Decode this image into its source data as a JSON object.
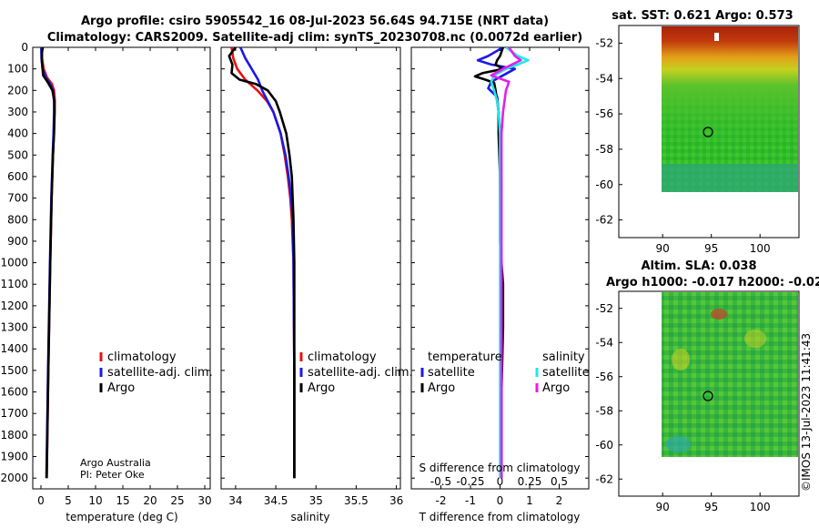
{
  "figure": {
    "title_line1": "Argo profile: csiro 5905542_16 08-Jul-2023 56.64S 94.715E (NRT data)",
    "title_line2": "Climatology: CARS2009. Satellite-adj clim: synTS_20230708.nc (0.0072d earlier)",
    "credit_line1": "Argo Australia",
    "credit_line2": "PI: Peter Oke",
    "timestamp": "©IMOS 13-Jul-2023 11:41:43"
  },
  "colors": {
    "climatology": "#e8110f",
    "satellite_adj": "#1a1ae6",
    "argo": "#000000",
    "sat_salinity": "#1ee8ee",
    "argo_salinity": "#e61ee6"
  },
  "legend_profiles": [
    {
      "label": "climatology",
      "series": "climatology"
    },
    {
      "label": "satellite-adj. clim.",
      "series": "satellite_adj"
    },
    {
      "label": "Argo",
      "series": "argo"
    }
  ],
  "legend_profiles_sal": [
    {
      "label": "climatology",
      "series": "climatology"
    },
    {
      "label": "satellite-adj. clim.",
      "series": "satellite_adj"
    },
    {
      "label": "Argo",
      "series": "argo"
    }
  ],
  "legend_diff": {
    "temperature_title": "temperature",
    "salinity_title": "salinity",
    "temperature_items": [
      {
        "label": "satellite",
        "series": "satellite_adj"
      },
      {
        "label": "Argo",
        "series": "argo"
      }
    ],
    "salinity_items": [
      {
        "label": "satellite",
        "series": "sat_salinity"
      },
      {
        "label": "Argo",
        "series": "argo_salinity"
      }
    ]
  },
  "maps": [
    {
      "title": "sat. SST: 0.621 Argo: 0.573",
      "subtitle": "",
      "yticks": [
        "-52",
        "-54",
        "-56",
        "-58",
        "-60",
        "-62"
      ],
      "xticks": [
        "90",
        "95",
        "100"
      ],
      "marker_lon": 94.715,
      "marker_lat": -56.64
    },
    {
      "title": "Altim. SLA: 0.038",
      "subtitle": "Argo h1000: -0.017 h2000: -0.02",
      "yticks": [
        "-52",
        "-54",
        "-56",
        "-58",
        "-60",
        "-62"
      ],
      "xticks": [
        "90",
        "95",
        "100"
      ],
      "marker_lon": 94.715,
      "marker_lat": -56.64
    }
  ],
  "chart_data": [
    {
      "type": "line",
      "title": "",
      "xlabel": "temperature (deg C)",
      "ylabel": "",
      "xlim": [
        -1.5,
        31
      ],
      "ylim": [
        2050,
        0
      ],
      "xticks": [
        0,
        5,
        10,
        15,
        20,
        25,
        30
      ],
      "yticks": [
        0,
        100,
        200,
        300,
        400,
        500,
        600,
        700,
        800,
        900,
        1000,
        1100,
        1200,
        1300,
        1400,
        1500,
        1600,
        1700,
        1800,
        1900,
        2000
      ],
      "series": [
        {
          "name": "climatology",
          "color_key": "climatology",
          "depth": [
            0,
            50,
            100,
            140,
            170,
            200,
            250,
            300,
            400,
            500,
            700,
            1000,
            1500,
            2000
          ],
          "values": [
            0.15,
            0.2,
            0.5,
            1.1,
            2.0,
            2.4,
            2.55,
            2.5,
            2.35,
            2.2,
            1.95,
            1.7,
            1.35,
            1.05
          ]
        },
        {
          "name": "satellite-adj. clim.",
          "color_key": "satellite_adj",
          "depth": [
            0,
            50,
            100,
            140,
            170,
            200,
            250,
            300,
            400,
            500,
            700,
            1000,
            1500,
            2000
          ],
          "values": [
            0.05,
            0.1,
            0.3,
            0.9,
            1.7,
            2.2,
            2.4,
            2.4,
            2.3,
            2.15,
            1.9,
            1.65,
            1.3,
            1.0
          ]
        },
        {
          "name": "Argo",
          "color_key": "argo",
          "depth": [
            0,
            20,
            60,
            100,
            130,
            160,
            200,
            250,
            300,
            400,
            500,
            700,
            1000,
            1500,
            2000
          ],
          "values": [
            0.35,
            0.2,
            0.15,
            0.3,
            0.4,
            1.2,
            2.1,
            2.45,
            2.5,
            2.4,
            2.2,
            1.95,
            1.7,
            1.35,
            1.05
          ]
        }
      ]
    },
    {
      "type": "line",
      "title": "",
      "xlabel": "salinity",
      "ylabel": "",
      "xlim": [
        33.82,
        36.05
      ],
      "ylim": [
        2050,
        0
      ],
      "xticks": [
        34,
        34.5,
        35,
        35.5,
        36
      ],
      "yticks": [
        0,
        100,
        200,
        300,
        400,
        500,
        600,
        700,
        800,
        900,
        1000,
        1100,
        1200,
        1300,
        1400,
        1500,
        1600,
        1700,
        1800,
        1900,
        2000
      ],
      "series": [
        {
          "name": "climatology",
          "color_key": "climatology",
          "depth": [
            0,
            50,
            100,
            150,
            200,
            250,
            300,
            400,
            500,
            600,
            700,
            800,
            1000,
            1500,
            2000
          ],
          "values": [
            33.95,
            33.97,
            34.02,
            34.12,
            34.27,
            34.39,
            34.47,
            34.56,
            34.61,
            34.65,
            34.68,
            34.7,
            34.72,
            34.73,
            34.73
          ]
        },
        {
          "name": "satellite-adj. clim.",
          "color_key": "satellite_adj",
          "depth": [
            0,
            50,
            100,
            150,
            200,
            250,
            300,
            400,
            500,
            600,
            700,
            800,
            1000,
            1500,
            2000
          ],
          "values": [
            34.06,
            34.12,
            34.2,
            34.28,
            34.33,
            34.4,
            34.47,
            34.56,
            34.62,
            34.66,
            34.69,
            34.71,
            34.72,
            34.73,
            34.73
          ]
        },
        {
          "name": "Argo",
          "color_key": "argo",
          "depth": [
            0,
            40,
            80,
            120,
            150,
            170,
            200,
            250,
            300,
            400,
            500,
            600,
            700,
            800,
            1000,
            1500,
            2000
          ],
          "values": [
            34.0,
            33.92,
            33.96,
            33.95,
            34.05,
            34.25,
            34.4,
            34.5,
            34.55,
            34.63,
            34.67,
            34.7,
            34.71,
            34.72,
            34.73,
            34.73,
            34.73
          ]
        }
      ]
    },
    {
      "type": "line",
      "title": "",
      "xlabel": "T difference from climatology",
      "ylabel": "",
      "top_xlabel": "S difference from climatology",
      "xlim": [
        -3,
        3
      ],
      "ylim": [
        2050,
        0
      ],
      "xticks": [
        -2,
        -1,
        0,
        1,
        2
      ],
      "top_xticks": [
        "-0.5",
        "-0.25",
        "0",
        "0.25",
        "0.5"
      ],
      "top_xtick_values": [
        -2,
        -1,
        0,
        1,
        2
      ],
      "yticks": [
        0,
        100,
        200,
        300,
        400,
        500,
        600,
        700,
        800,
        900,
        1000,
        1100,
        1200,
        1300,
        1400,
        1500,
        1600,
        1700,
        1800,
        1900,
        2000
      ],
      "series": [
        {
          "name": "temperature satellite",
          "color_key": "satellite_adj",
          "depth": [
            0,
            40,
            60,
            80,
            100,
            130,
            160,
            190,
            230,
            300,
            400,
            600,
            900,
            1200,
            1600,
            2000
          ],
          "values": [
            0.1,
            -0.4,
            -0.75,
            -0.3,
            0.5,
            0.1,
            -0.3,
            -0.4,
            -0.1,
            -0.05,
            0.0,
            0.0,
            0.02,
            0.03,
            0.05,
            0.05
          ]
        },
        {
          "name": "temperature Argo",
          "color_key": "argo",
          "depth": [
            0,
            40,
            60,
            80,
            100,
            120,
            135,
            150,
            165,
            200,
            250,
            300,
            400,
            600,
            900,
            1000,
            1100,
            1300,
            1600,
            2000
          ],
          "values": [
            0.1,
            0.0,
            -0.1,
            -0.15,
            0.1,
            -0.6,
            -0.85,
            -0.5,
            -0.2,
            -0.15,
            -0.1,
            -0.05,
            -0.05,
            0.0,
            0.0,
            0.05,
            0.1,
            0.1,
            0.05,
            0.05
          ]
        },
        {
          "name": "salinity satellite",
          "color_key": "sat_salinity",
          "depth": [
            0,
            40,
            60,
            80,
            100,
            130,
            160,
            200,
            250,
            300,
            400,
            600,
            800,
            1000,
            1500,
            2000
          ],
          "values": [
            0.2,
            0.6,
            0.95,
            0.6,
            0.2,
            -0.2,
            -0.3,
            -0.2,
            -0.1,
            -0.05,
            0.0,
            0.0,
            0.0,
            0.0,
            0.0,
            0.0
          ]
        },
        {
          "name": "salinity Argo",
          "color_key": "argo_salinity",
          "depth": [
            0,
            40,
            60,
            80,
            100,
            130,
            160,
            200,
            250,
            300,
            400,
            600,
            800,
            1000,
            1500,
            2000
          ],
          "values": [
            0.3,
            0.5,
            0.7,
            0.4,
            0.1,
            -0.3,
            0.3,
            0.2,
            0.15,
            0.1,
            0.05,
            0.05,
            0.05,
            0.05,
            0.05,
            0.05
          ]
        }
      ]
    }
  ]
}
